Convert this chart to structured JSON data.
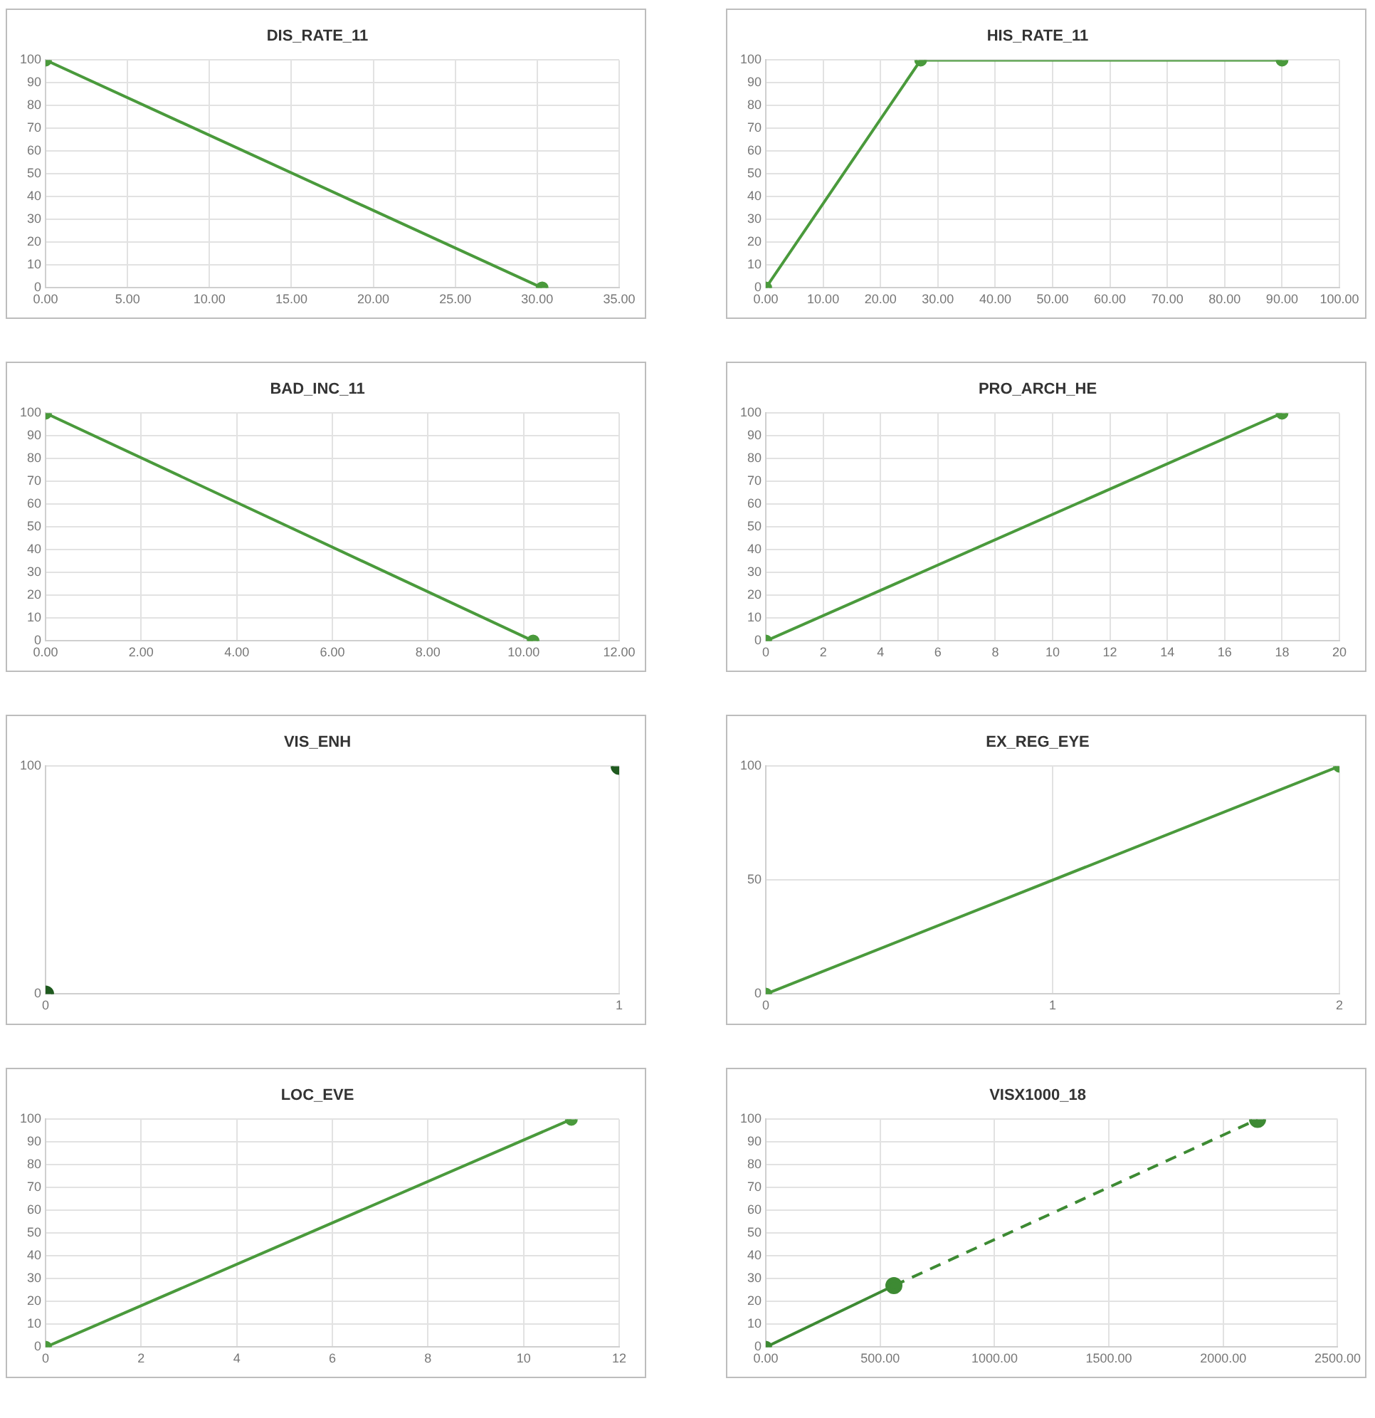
{
  "chart_data": [
    {
      "type": "line",
      "title": "DIS_RATE_11",
      "x": [
        0,
        30.3
      ],
      "values": [
        100,
        0
      ],
      "color": "#4a9a3c",
      "marker": "circle",
      "grid": true,
      "xlim": [
        0,
        35
      ],
      "xticks": [
        {
          "value": 0,
          "label": "0.00"
        },
        {
          "value": 5,
          "label": "5.00"
        },
        {
          "value": 10,
          "label": "10.00"
        },
        {
          "value": 15,
          "label": "15.00"
        },
        {
          "value": 20,
          "label": "20.00"
        },
        {
          "value": 25,
          "label": "25.00"
        },
        {
          "value": 30,
          "label": "30.00"
        },
        {
          "value": 35,
          "label": "35.00"
        }
      ],
      "ylim": [
        0,
        100
      ],
      "yticks": [
        0,
        10,
        20,
        30,
        40,
        50,
        60,
        70,
        80,
        90,
        100
      ]
    },
    {
      "type": "line",
      "title": "HIS_RATE_11",
      "x": [
        0,
        27,
        90
      ],
      "values": [
        0,
        100,
        100
      ],
      "color": "#4a9a3c",
      "marker": "circle",
      "grid": true,
      "xlim": [
        0,
        100
      ],
      "xticks": [
        {
          "value": 0,
          "label": "0.00"
        },
        {
          "value": 10,
          "label": "10.00"
        },
        {
          "value": 20,
          "label": "20.00"
        },
        {
          "value": 30,
          "label": "30.00"
        },
        {
          "value": 40,
          "label": "40.00"
        },
        {
          "value": 50,
          "label": "50.00"
        },
        {
          "value": 60,
          "label": "60.00"
        },
        {
          "value": 70,
          "label": "70.00"
        },
        {
          "value": 80,
          "label": "80.00"
        },
        {
          "value": 90,
          "label": "90.00"
        },
        {
          "value": 100,
          "label": "100.00"
        }
      ],
      "ylim": [
        0,
        100
      ],
      "yticks": [
        0,
        10,
        20,
        30,
        40,
        50,
        60,
        70,
        80,
        90,
        100
      ]
    },
    {
      "type": "line",
      "title": "BAD_INC_11",
      "x": [
        0,
        10.2
      ],
      "values": [
        100,
        0
      ],
      "color": "#4a9a3c",
      "marker": "circle",
      "grid": true,
      "xlim": [
        0,
        12
      ],
      "xticks": [
        {
          "value": 0,
          "label": "0.00"
        },
        {
          "value": 2,
          "label": "2.00"
        },
        {
          "value": 4,
          "label": "4.00"
        },
        {
          "value": 6,
          "label": "6.00"
        },
        {
          "value": 8,
          "label": "8.00"
        },
        {
          "value": 10,
          "label": "10.00"
        },
        {
          "value": 12,
          "label": "12.00"
        }
      ],
      "ylim": [
        0,
        100
      ],
      "yticks": [
        0,
        10,
        20,
        30,
        40,
        50,
        60,
        70,
        80,
        90,
        100
      ]
    },
    {
      "type": "line",
      "title": "PRO_ARCH_HE",
      "x": [
        0,
        18
      ],
      "values": [
        0,
        100
      ],
      "color": "#4a9a3c",
      "marker": "circle",
      "grid": true,
      "xlim": [
        0,
        20
      ],
      "xticks": [
        0,
        2,
        4,
        6,
        8,
        10,
        12,
        14,
        16,
        18,
        20
      ],
      "ylim": [
        0,
        100
      ],
      "yticks": [
        0,
        10,
        20,
        30,
        40,
        50,
        60,
        70,
        80,
        90,
        100
      ]
    },
    {
      "type": "scatter",
      "title": "VIS_ENH",
      "x": [
        0,
        1
      ],
      "values": [
        0,
        100
      ],
      "color": "#1f5a1f",
      "marker": "circle",
      "grid": true,
      "xlim": [
        0,
        1
      ],
      "xticks": [
        0,
        1
      ],
      "ylim": [
        0,
        100
      ],
      "yticks": [
        0,
        100
      ]
    },
    {
      "type": "line",
      "title": "EX_REG_EYE",
      "x": [
        0,
        2
      ],
      "values": [
        0,
        100
      ],
      "color": "#4a9a3c",
      "marker": "circle",
      "grid": true,
      "xlim": [
        0,
        2
      ],
      "xticks": [
        0,
        1,
        2
      ],
      "ylim": [
        0,
        100
      ],
      "yticks": [
        0,
        50,
        100
      ]
    },
    {
      "type": "line",
      "title": "LOC_EVE",
      "x": [
        0,
        11
      ],
      "values": [
        0,
        100
      ],
      "color": "#4a9a3c",
      "marker": "circle",
      "grid": true,
      "xlim": [
        0,
        12
      ],
      "xticks": [
        0,
        2,
        4,
        6,
        8,
        10,
        12
      ],
      "ylim": [
        0,
        100
      ],
      "yticks": [
        0,
        10,
        20,
        30,
        40,
        50,
        60,
        70,
        80,
        90,
        100
      ]
    },
    {
      "type": "line",
      "title": "VISX1000_18",
      "marker": "circle",
      "grid": true,
      "series": [
        {
          "color": "#3d8a33",
          "x": [
            0,
            560
          ],
          "values": [
            0,
            27
          ],
          "line_style": "solid"
        },
        {
          "color": "#3d8a33",
          "x": [
            560,
            2150
          ],
          "values": [
            27,
            100
          ],
          "line_style": "dashed"
        }
      ],
      "xlim": [
        0,
        2500
      ],
      "xticks": [
        {
          "value": 0,
          "label": "0.00"
        },
        {
          "value": 500,
          "label": "500.00"
        },
        {
          "value": 1000,
          "label": "1000.00"
        },
        {
          "value": 1500,
          "label": "1500.00"
        },
        {
          "value": 2000,
          "label": "2000.00"
        },
        {
          "value": 2500,
          "label": "2500.00"
        }
      ],
      "ylim": [
        0,
        100
      ],
      "yticks": [
        0,
        10,
        20,
        30,
        40,
        50,
        60,
        70,
        80,
        90,
        100
      ]
    }
  ]
}
